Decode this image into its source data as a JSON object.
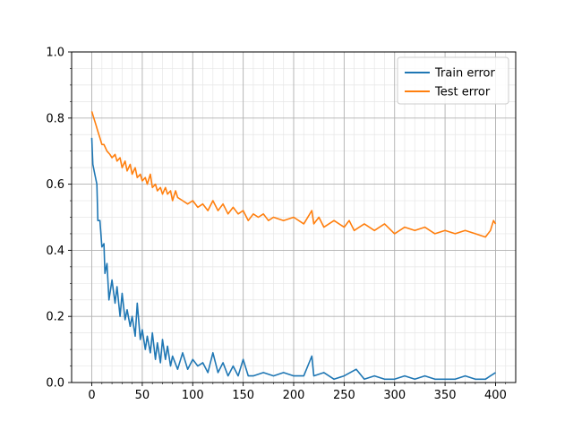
{
  "chart_data": {
    "type": "line",
    "title": "",
    "xlabel": "",
    "ylabel": "",
    "xlim": [
      -20,
      420
    ],
    "ylim": [
      0,
      1.0
    ],
    "x_ticks": [
      0,
      50,
      100,
      150,
      200,
      250,
      300,
      350,
      400
    ],
    "x_tick_labels": [
      "0",
      "50",
      "100",
      "150",
      "200",
      "250",
      "300",
      "350",
      "400"
    ],
    "y_ticks": [
      0,
      0.2,
      0.4,
      0.6,
      0.8,
      1.0
    ],
    "y_tick_labels": [
      "0.0",
      "0.2",
      "0.4",
      "0.6",
      "0.8",
      "1.0"
    ],
    "grid": "major and minor",
    "legend_position": "top-right",
    "series": [
      {
        "name": "Train error",
        "color": "#1f77b4",
        "x": [
          0,
          1,
          3,
          5,
          6,
          8,
          10,
          12,
          13,
          15,
          17,
          20,
          23,
          25,
          28,
          30,
          33,
          35,
          38,
          40,
          43,
          45,
          48,
          50,
          53,
          55,
          58,
          60,
          63,
          65,
          68,
          70,
          73,
          75,
          78,
          80,
          85,
          90,
          95,
          100,
          105,
          110,
          115,
          120,
          125,
          130,
          135,
          140,
          145,
          150,
          155,
          160,
          170,
          180,
          190,
          200,
          210,
          218,
          220,
          230,
          240,
          250,
          262,
          270,
          280,
          290,
          300,
          310,
          320,
          330,
          340,
          350,
          360,
          370,
          380,
          390,
          395,
          400
        ],
        "y": [
          0.74,
          0.66,
          0.63,
          0.6,
          0.49,
          0.49,
          0.41,
          0.42,
          0.33,
          0.36,
          0.25,
          0.31,
          0.24,
          0.29,
          0.2,
          0.27,
          0.19,
          0.22,
          0.17,
          0.2,
          0.14,
          0.24,
          0.13,
          0.16,
          0.1,
          0.14,
          0.09,
          0.15,
          0.07,
          0.12,
          0.06,
          0.13,
          0.07,
          0.11,
          0.05,
          0.08,
          0.04,
          0.09,
          0.04,
          0.07,
          0.05,
          0.06,
          0.03,
          0.09,
          0.03,
          0.06,
          0.02,
          0.05,
          0.02,
          0.07,
          0.02,
          0.02,
          0.03,
          0.02,
          0.03,
          0.02,
          0.02,
          0.08,
          0.02,
          0.03,
          0.01,
          0.02,
          0.04,
          0.01,
          0.02,
          0.01,
          0.01,
          0.02,
          0.01,
          0.02,
          0.01,
          0.01,
          0.01,
          0.02,
          0.01,
          0.01,
          0.02,
          0.03
        ]
      },
      {
        "name": "Test error",
        "color": "#ff7f0e",
        "x": [
          0,
          2,
          4,
          6,
          8,
          10,
          12,
          15,
          18,
          20,
          23,
          25,
          28,
          30,
          33,
          35,
          38,
          40,
          43,
          45,
          48,
          50,
          53,
          55,
          58,
          60,
          63,
          65,
          68,
          70,
          73,
          75,
          78,
          80,
          83,
          85,
          90,
          95,
          100,
          105,
          110,
          115,
          120,
          125,
          130,
          135,
          140,
          145,
          150,
          155,
          160,
          165,
          170,
          175,
          180,
          190,
          200,
          210,
          218,
          220,
          225,
          230,
          240,
          250,
          255,
          260,
          270,
          280,
          290,
          300,
          310,
          320,
          330,
          340,
          350,
          360,
          370,
          380,
          390,
          395,
          398,
          400
        ],
        "y": [
          0.82,
          0.8,
          0.78,
          0.76,
          0.74,
          0.72,
          0.72,
          0.7,
          0.69,
          0.68,
          0.69,
          0.67,
          0.68,
          0.65,
          0.67,
          0.64,
          0.66,
          0.63,
          0.65,
          0.62,
          0.63,
          0.61,
          0.62,
          0.6,
          0.63,
          0.59,
          0.6,
          0.58,
          0.59,
          0.57,
          0.59,
          0.57,
          0.58,
          0.55,
          0.58,
          0.56,
          0.55,
          0.54,
          0.55,
          0.53,
          0.54,
          0.52,
          0.55,
          0.52,
          0.54,
          0.51,
          0.53,
          0.51,
          0.52,
          0.49,
          0.51,
          0.5,
          0.51,
          0.49,
          0.5,
          0.49,
          0.5,
          0.48,
          0.52,
          0.48,
          0.5,
          0.47,
          0.49,
          0.47,
          0.49,
          0.46,
          0.48,
          0.46,
          0.48,
          0.45,
          0.47,
          0.46,
          0.47,
          0.45,
          0.46,
          0.45,
          0.46,
          0.45,
          0.44,
          0.46,
          0.49,
          0.48
        ]
      }
    ]
  }
}
